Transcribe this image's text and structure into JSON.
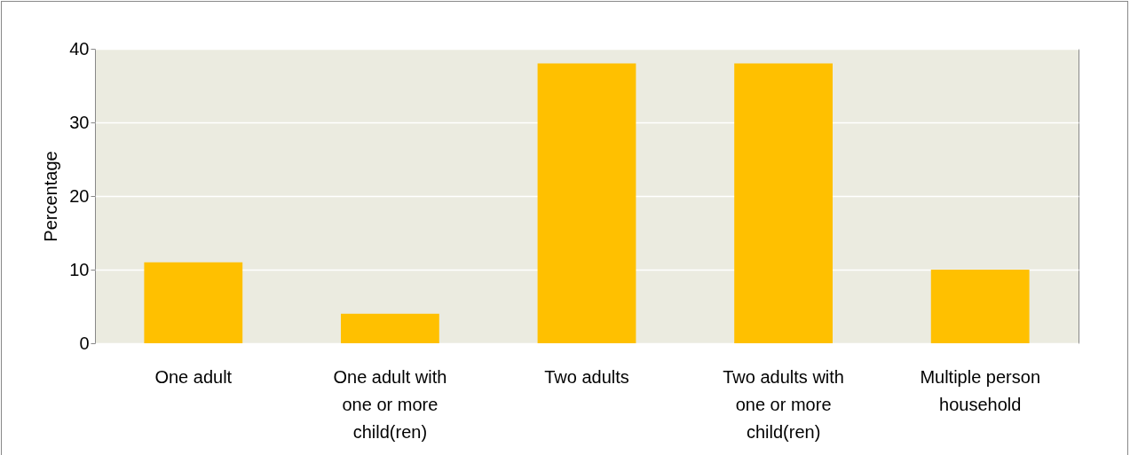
{
  "chart_data": {
    "type": "bar",
    "ylabel": "Percentage",
    "categories": [
      "One adult",
      "One adult with one or more child(ren)",
      "Two adults",
      "Two adults with one or more child(ren)",
      "Multiple person household"
    ],
    "values": [
      11,
      4,
      38,
      38,
      10
    ],
    "color": "#ffc000",
    "ylim": [
      0,
      40
    ],
    "yticks": [
      0,
      10,
      20,
      30,
      40
    ],
    "grid": "y"
  }
}
